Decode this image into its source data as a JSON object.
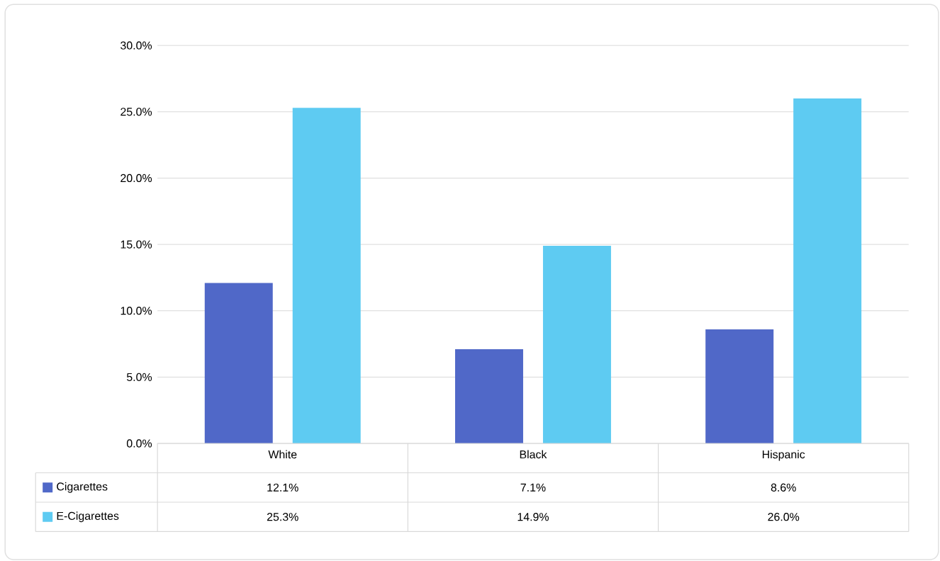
{
  "chart_data": {
    "type": "bar",
    "categories": [
      "White",
      "Black",
      "Hispanic"
    ],
    "series": [
      {
        "name": "Cigarettes",
        "color": "#5068c8",
        "values": [
          12.1,
          7.1,
          8.6
        ],
        "value_labels": [
          "12.1%",
          "7.1%",
          "8.6%"
        ]
      },
      {
        "name": "E-Cigarettes",
        "color": "#5ecbf2",
        "values": [
          25.3,
          14.9,
          26.0
        ],
        "value_labels": [
          "25.3%",
          "14.9%",
          "26.0%"
        ]
      }
    ],
    "ylim": [
      0,
      30
    ],
    "yticks": [
      {
        "value": 0,
        "label": "0.0%"
      },
      {
        "value": 5,
        "label": "5.0%"
      },
      {
        "value": 10,
        "label": "10.0%"
      },
      {
        "value": 15,
        "label": "15.0%"
      },
      {
        "value": 20,
        "label": "20.0%"
      },
      {
        "value": 25,
        "label": "25.0%"
      },
      {
        "value": 30,
        "label": "30.0%"
      }
    ],
    "grid": "y",
    "legend": "bottom left"
  }
}
